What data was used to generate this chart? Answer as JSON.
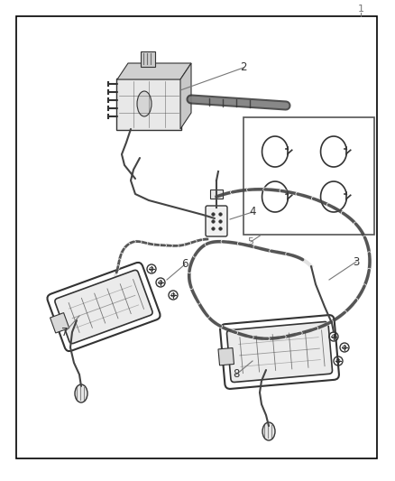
{
  "bg_color": "#ffffff",
  "border_color": "#000000",
  "line_color": "#444444",
  "part_color": "#333333",
  "label_color": "#777777",
  "fig_width": 4.38,
  "fig_height": 5.33,
  "dpi": 100
}
